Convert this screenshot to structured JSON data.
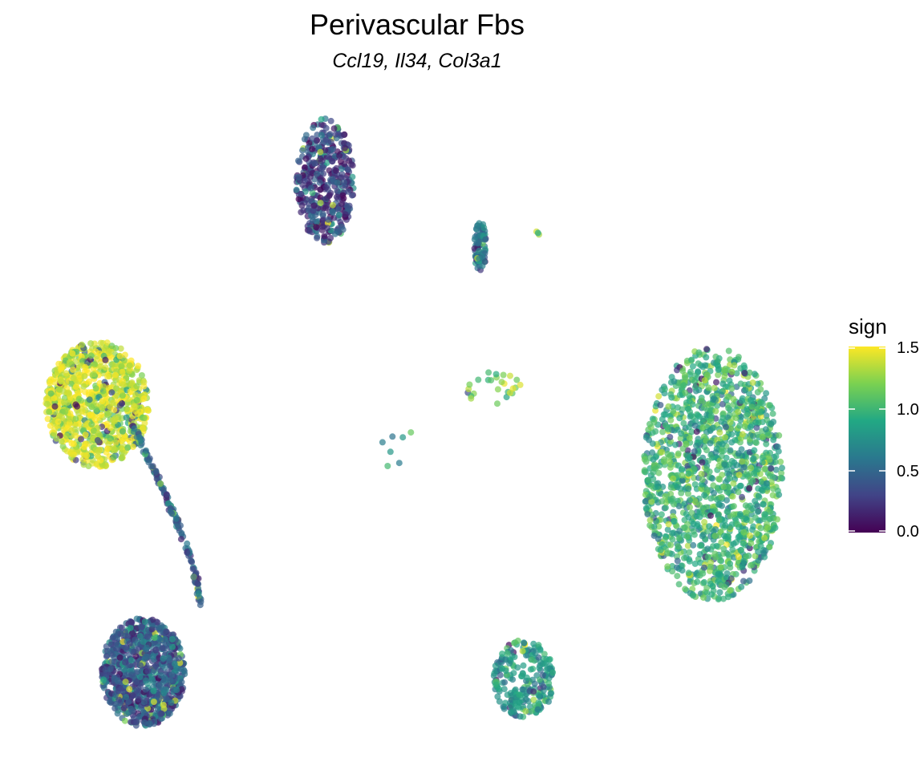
{
  "chart_data": {
    "type": "scatter",
    "title": "Perivascular Fbs",
    "subtitle": "Ccl19, Il34, Col3a1",
    "xlabel": "",
    "ylabel": "",
    "grid": false,
    "axes_visible": false,
    "color_scale": {
      "name": "viridis",
      "stops": [
        "#440154",
        "#414487",
        "#2a788e",
        "#22a884",
        "#7ad151",
        "#fde725"
      ],
      "domain": [
        0,
        1.6
      ]
    },
    "legend": {
      "title": "sign",
      "position": "right",
      "ticks": [
        "1.5",
        "1.0",
        "0.5",
        "0.0"
      ]
    },
    "clusters": [
      {
        "name": "left-upper",
        "x_range": [
          -12.5,
          -8.8
        ],
        "y_range": [
          1.0,
          5.5
        ],
        "mean_sign": 1.5,
        "n": 900
      },
      {
        "name": "left-lower",
        "x_range": [
          -10.5,
          -7.5
        ],
        "y_range": [
          -8.3,
          -4.4
        ],
        "mean_sign": 0.45,
        "n": 900
      },
      {
        "name": "left-arc",
        "x_range": [
          -9.0,
          -6.8
        ],
        "y_range": [
          -4.0,
          2.5
        ],
        "mean_sign": 0.5,
        "n": 140
      },
      {
        "name": "top",
        "x_range": [
          -3.5,
          -1.4
        ],
        "y_range": [
          9.0,
          13.5
        ],
        "mean_sign": 0.3,
        "n": 420
      },
      {
        "name": "mid-strip",
        "x_range": [
          2.9,
          3.4
        ],
        "y_range": [
          8.0,
          9.8
        ],
        "mean_sign": 0.65,
        "n": 80
      },
      {
        "name": "mid-small",
        "x_range": [
          2.6,
          4.6
        ],
        "y_range": [
          3.2,
          4.4
        ],
        "mean_sign": 1.2,
        "n": 26
      },
      {
        "name": "mid-scattered",
        "x_range": [
          -0.6,
          1.0
        ],
        "y_range": [
          -0.2,
          2.9
        ],
        "mean_sign": 0.8,
        "n": 7
      },
      {
        "name": "right",
        "x_range": [
          9.0,
          14.0
        ],
        "y_range": [
          -3.8,
          5.3
        ],
        "mean_sign": 1.05,
        "n": 1400
      },
      {
        "name": "bottom-mid",
        "x_range": [
          3.6,
          5.8
        ],
        "y_range": [
          -8.0,
          -5.2
        ],
        "mean_sign": 0.85,
        "n": 240
      },
      {
        "name": "top-right-dot",
        "x_range": [
          5.1,
          5.3
        ],
        "y_range": [
          9.3,
          9.5
        ],
        "mean_sign": 1.4,
        "n": 3
      }
    ]
  }
}
